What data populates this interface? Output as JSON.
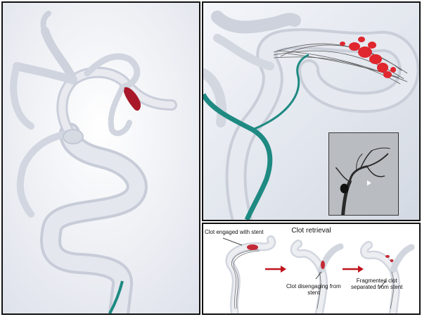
{
  "clot_retrieval": {
    "title": "Clot retrieval",
    "step1_label": "Clot engaged with stent",
    "step2_label_line1": "Clot disengaging from",
    "step2_label_line2": "stent",
    "step3_label_line1": "Fragmented clot",
    "step3_label_line2": "separated from stent"
  },
  "colors": {
    "clot": "#a8182a",
    "clot_fragments": "#e0262e",
    "catheter": "#1e8a82",
    "arrow": "#c0141c",
    "vessel": "#d9dde6",
    "panel_border": "#111111"
  }
}
